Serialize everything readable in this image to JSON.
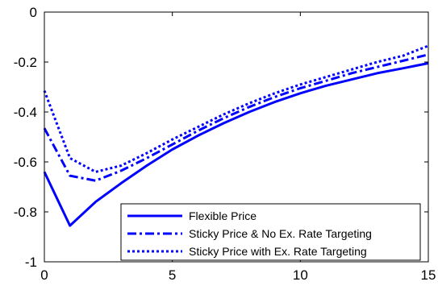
{
  "chart_data": {
    "type": "line",
    "title": "",
    "xlabel": "",
    "ylabel": "",
    "xlim": [
      0,
      15
    ],
    "ylim": [
      -1,
      0
    ],
    "xticks": [
      "0",
      "5",
      "10",
      "15"
    ],
    "yticks": [
      "0",
      "-0.2",
      "-0.4",
      "-0.6",
      "-0.8",
      "-1"
    ],
    "grid": false,
    "legend_position": "bottom-right",
    "line_color": "#0000ff",
    "x": [
      0,
      1,
      2,
      3,
      4,
      5,
      6,
      7,
      8,
      9,
      10,
      11,
      12,
      13,
      14,
      15
    ],
    "series": [
      {
        "name": "Flexible Price",
        "style": "solid",
        "values": [
          -0.64,
          -0.855,
          -0.76,
          -0.685,
          -0.615,
          -0.55,
          -0.495,
          -0.445,
          -0.4,
          -0.36,
          -0.325,
          -0.295,
          -0.27,
          -0.245,
          -0.225,
          -0.205
        ]
      },
      {
        "name": "Sticky Price & No Ex. Rate Targeting",
        "style": "dashdot",
        "values": [
          -0.465,
          -0.655,
          -0.675,
          -0.635,
          -0.585,
          -0.53,
          -0.475,
          -0.425,
          -0.38,
          -0.34,
          -0.305,
          -0.275,
          -0.245,
          -0.22,
          -0.195,
          -0.17
        ]
      },
      {
        "name": "Sticky Price with Ex. Rate Targeting",
        "style": "dotted",
        "values": [
          -0.315,
          -0.585,
          -0.64,
          -0.615,
          -0.565,
          -0.51,
          -0.46,
          -0.41,
          -0.365,
          -0.325,
          -0.29,
          -0.26,
          -0.23,
          -0.2,
          -0.175,
          -0.135
        ]
      }
    ]
  }
}
